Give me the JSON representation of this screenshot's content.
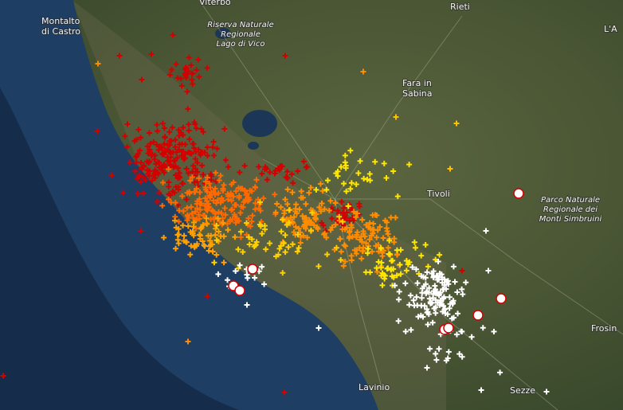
{
  "places": {
    "montalto": [
      "Montalto",
      "di Castro"
    ],
    "viterbo": [
      "Viterbo"
    ],
    "vico": [
      "Riserva Naturale",
      "Regionale",
      "Lago di Vico"
    ],
    "rieti": [
      "Rieti"
    ],
    "laquila": [
      "L'A"
    ],
    "fara": [
      "Fara in",
      "Sabina"
    ],
    "tivoli": [
      "Tivoli"
    ],
    "simbruini": [
      "Parco Naturale",
      "Regionale dei",
      "Monti Simbruini"
    ],
    "frosinone": [
      "Frosin"
    ],
    "lavinio": [
      "Lavinio"
    ],
    "sezze": [
      "Sezze"
    ]
  }
}
